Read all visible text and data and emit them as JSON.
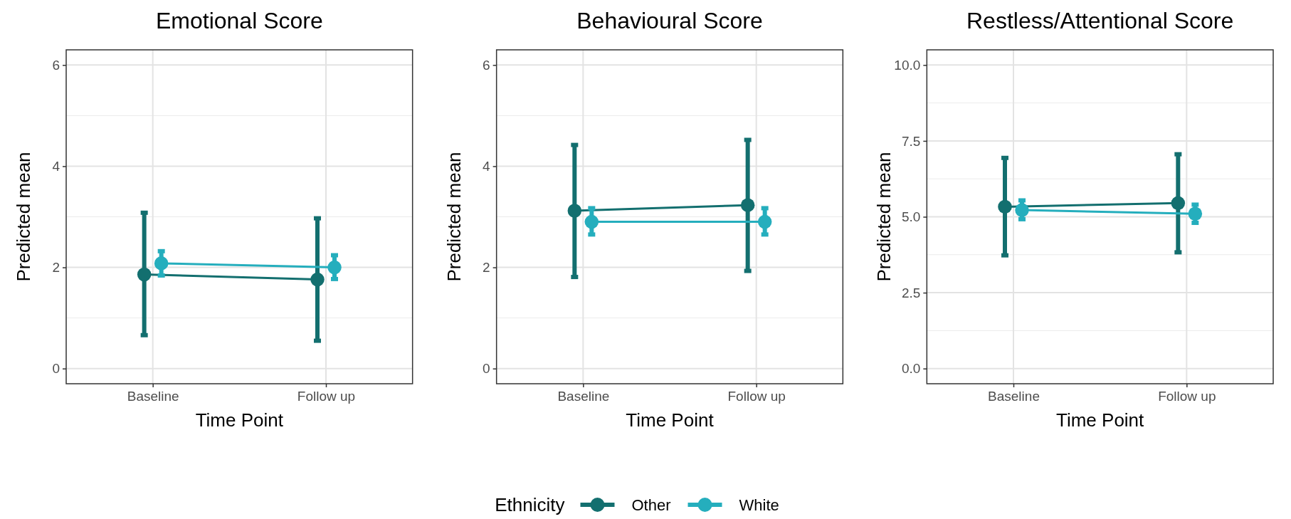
{
  "chart_data": [
    {
      "type": "line",
      "title": "Emotional Score",
      "xlabel": "Time Point",
      "ylabel": "Predicted mean",
      "legend_title": "Ethnicity",
      "categories": [
        "Baseline",
        "Follow up"
      ],
      "ylim": [
        -0.3,
        6.3
      ],
      "yticks": [
        0,
        2,
        4,
        6
      ],
      "grid": true,
      "marker": "circle",
      "legend": "bottom",
      "series": [
        {
          "name": "Other",
          "color": "#136f6f",
          "values": [
            1.86,
            1.76
          ],
          "errors": [
            [
              0.66,
              3.08
            ],
            [
              0.55,
              2.97
            ]
          ]
        },
        {
          "name": "White",
          "color": "#25aebd",
          "values": [
            2.08,
            2.0
          ],
          "errors": [
            [
              1.84,
              2.32
            ],
            [
              1.77,
              2.24
            ]
          ]
        }
      ]
    },
    {
      "type": "line",
      "title": "Behavioural Score",
      "xlabel": "Time Point",
      "ylabel": "Predicted mean",
      "categories": [
        "Baseline",
        "Follow up"
      ],
      "ylim": [
        -0.3,
        6.3
      ],
      "yticks": [
        0,
        2,
        4,
        6
      ],
      "grid": true,
      "marker": "circle",
      "series": [
        {
          "color": "#136f6f",
          "values": [
            3.12,
            3.23
          ],
          "errors": [
            [
              1.81,
              4.42
            ],
            [
              1.93,
              4.52
            ]
          ]
        },
        {
          "color": "#25aebd",
          "values": [
            2.9,
            2.9
          ],
          "errors": [
            [
              2.65,
              3.17
            ],
            [
              2.65,
              3.17
            ]
          ]
        }
      ]
    },
    {
      "type": "line",
      "title": "Restless/Attentional Score",
      "xlabel": "Time Point",
      "ylabel": "Predicted mean",
      "categories": [
        "Baseline",
        "Follow up"
      ],
      "ylim": [
        -0.5,
        10.5
      ],
      "yticks": [
        {
          "value": 0,
          "label": "0.0"
        },
        {
          "value": 2.5,
          "label": "2.5"
        },
        {
          "value": 5,
          "label": "5.0"
        },
        {
          "value": 7.5,
          "label": "7.5"
        },
        {
          "value": 10,
          "label": "10.0"
        }
      ],
      "grid": true,
      "marker": "circle",
      "series": [
        {
          "color": "#136f6f",
          "values": [
            5.33,
            5.45
          ],
          "errors": [
            [
              3.73,
              6.94
            ],
            [
              3.83,
              7.06
            ]
          ]
        },
        {
          "color": "#25aebd",
          "values": [
            5.22,
            5.1
          ],
          "errors": [
            [
              4.92,
              5.54
            ],
            [
              4.8,
              5.4
            ]
          ]
        }
      ]
    }
  ]
}
